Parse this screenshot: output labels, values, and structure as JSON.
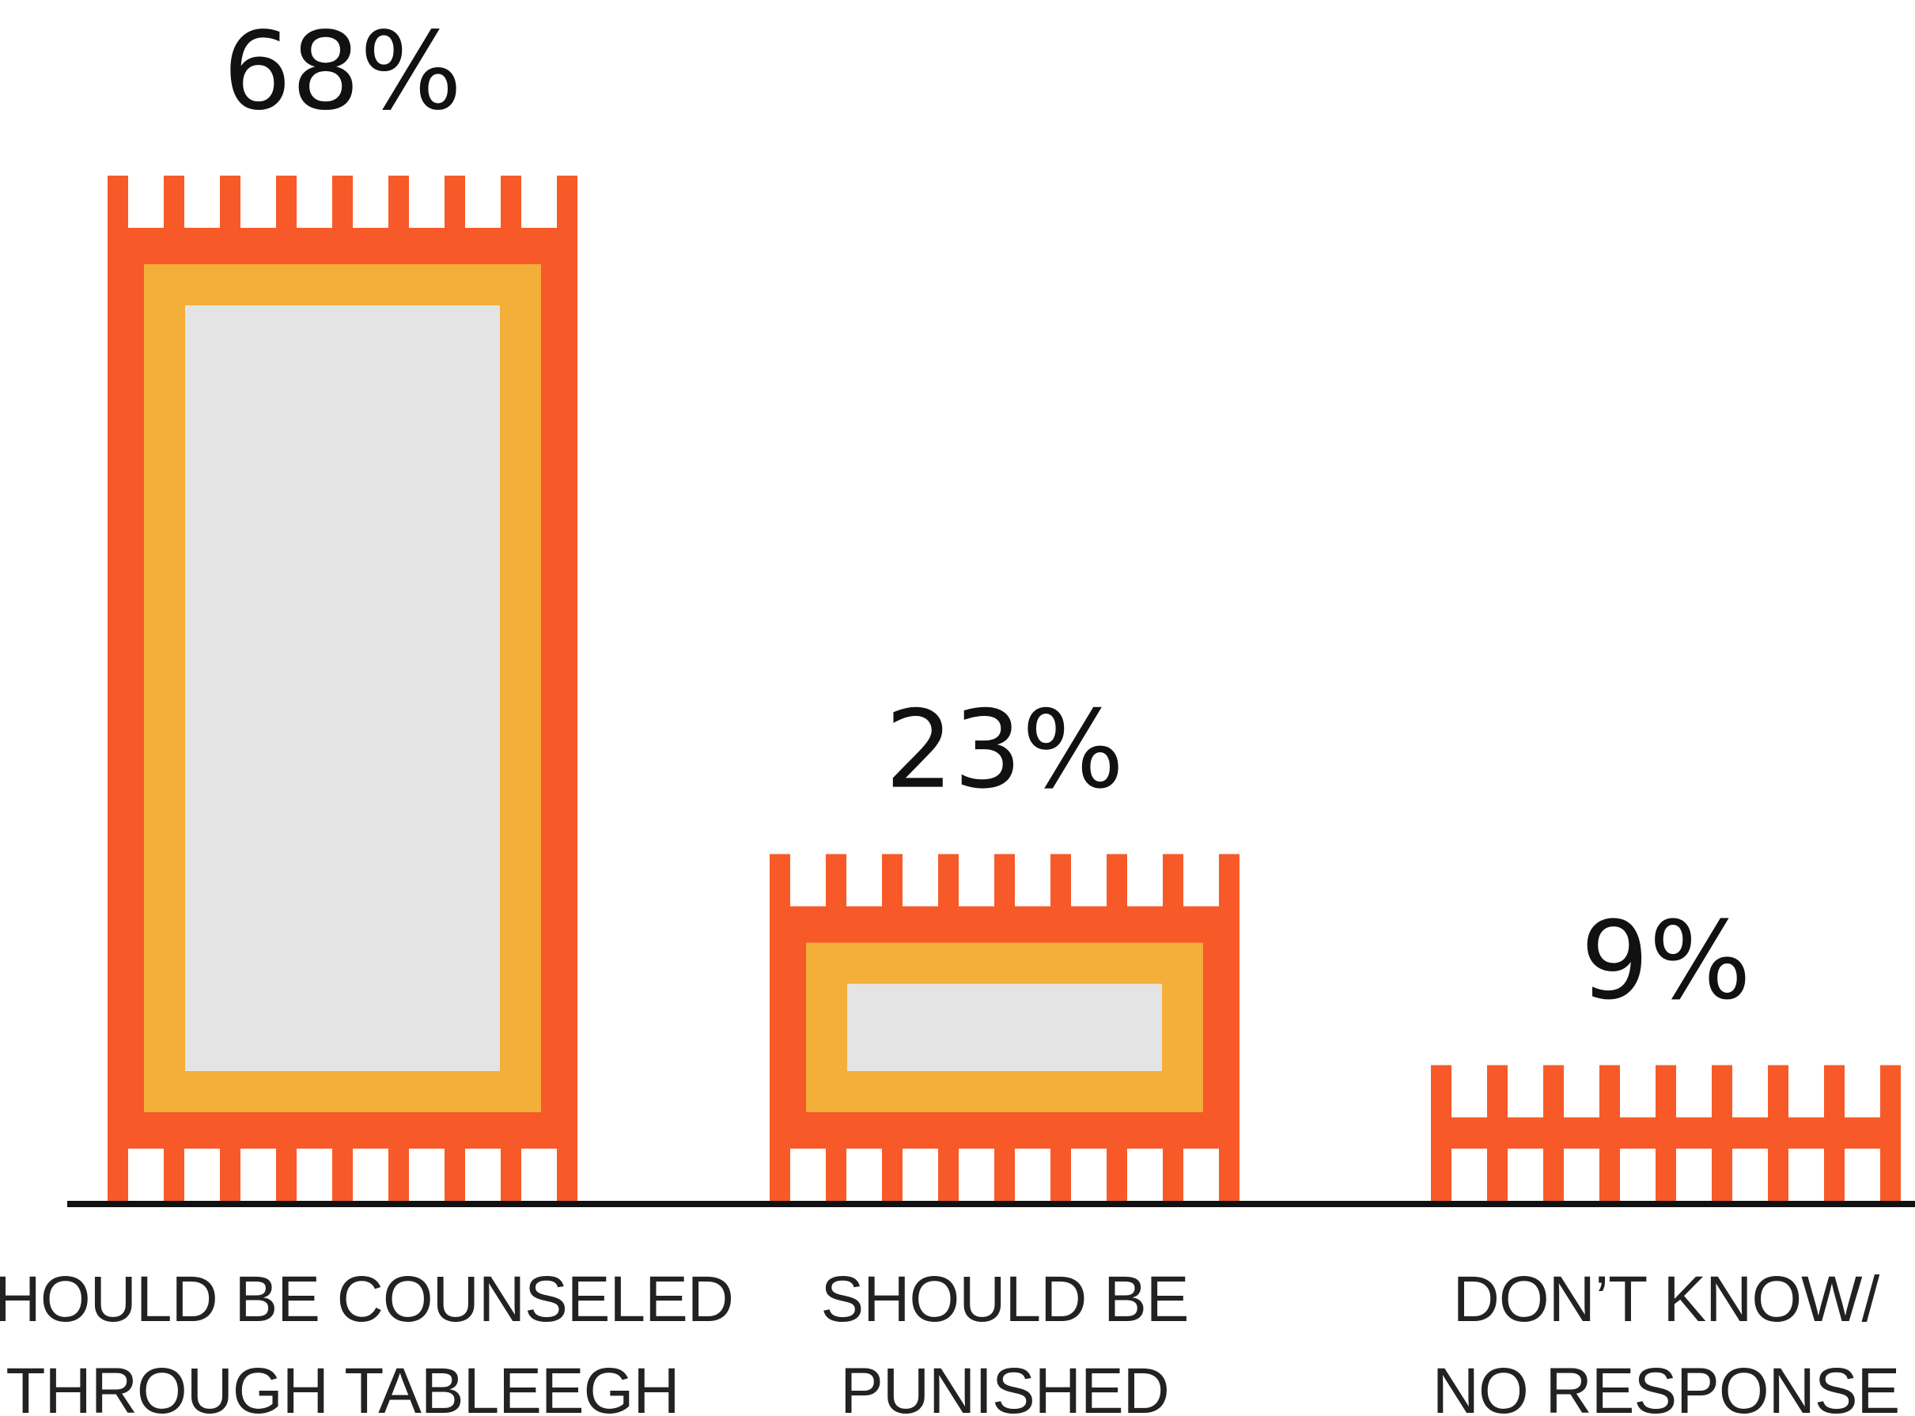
{
  "chart_data": {
    "type": "bar",
    "categories": [
      [
        "SHOULD BE COUNSELED",
        "THROUGH TABLEEGH"
      ],
      [
        "SHOULD BE",
        "PUNISHED"
      ],
      [
        "DON’T KNOW/",
        "NO RESPONSE"
      ]
    ],
    "values": [
      68,
      23,
      9
    ],
    "value_labels": [
      "68%",
      "23%",
      "9%"
    ],
    "title": "",
    "xlabel": "",
    "ylabel": "",
    "ylim": [
      0,
      68
    ],
    "grid": false,
    "legend": "none",
    "bar_style": "rug with fringe",
    "colors": {
      "outer": "#F75A28",
      "inner_border": "#F4AE3A",
      "center": "#E4E4E4",
      "axis": "#111111",
      "text": "#111111"
    }
  }
}
